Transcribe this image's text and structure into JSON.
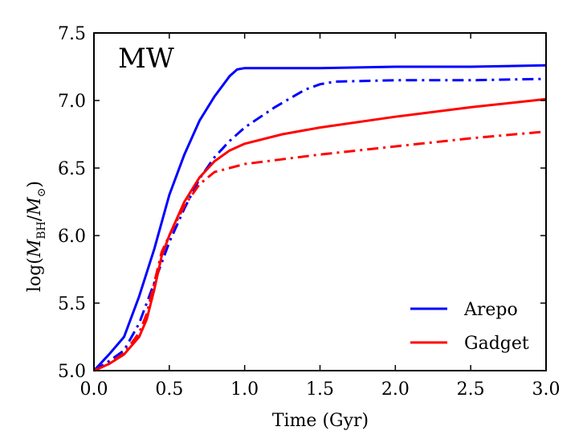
{
  "chart_data": {
    "type": "line",
    "panel_label": "MW",
    "xlabel": "Time (Gyr)",
    "ylabel": "log(M_BH/M_⊙)",
    "xlim": [
      0.0,
      3.0
    ],
    "ylim": [
      5.0,
      7.5
    ],
    "x_ticks": [
      0.0,
      0.5,
      1.0,
      1.5,
      2.0,
      2.5,
      3.0
    ],
    "x_tick_labels": [
      "0.0",
      "0.5",
      "1.0",
      "1.5",
      "2.0",
      "2.5",
      "3.0"
    ],
    "y_ticks": [
      5.0,
      5.5,
      6.0,
      6.5,
      7.0,
      7.5
    ],
    "y_tick_labels": [
      "5.0",
      "5.5",
      "6.0",
      "6.5",
      "7.0",
      "7.5"
    ],
    "grid": false,
    "legend": {
      "position": "lower-right",
      "entries": [
        {
          "label": "Arepo",
          "color": "#0000ff"
        },
        {
          "label": "Gadget",
          "color": "#ff0000"
        }
      ]
    },
    "series": [
      {
        "color": "#0000ff",
        "style": "solid",
        "x": [
          0.0,
          0.05,
          0.1,
          0.2,
          0.3,
          0.4,
          0.5,
          0.6,
          0.7,
          0.8,
          0.9,
          0.95,
          1.0,
          1.5,
          2.0,
          2.5,
          3.0
        ],
        "y": [
          5.0,
          5.06,
          5.12,
          5.25,
          5.55,
          5.9,
          6.3,
          6.6,
          6.85,
          7.03,
          7.18,
          7.23,
          7.24,
          7.24,
          7.25,
          7.25,
          7.26
        ]
      },
      {
        "color": "#0000ff",
        "style": "dashdot",
        "x": [
          0.0,
          0.1,
          0.2,
          0.3,
          0.4,
          0.5,
          0.6,
          0.7,
          0.8,
          0.9,
          1.0,
          1.2,
          1.4,
          1.5,
          1.6,
          2.0,
          2.5,
          3.0
        ],
        "y": [
          5.0,
          5.07,
          5.15,
          5.35,
          5.65,
          5.95,
          6.2,
          6.42,
          6.58,
          6.7,
          6.8,
          6.95,
          7.08,
          7.12,
          7.14,
          7.15,
          7.15,
          7.16
        ]
      },
      {
        "color": "#ff0000",
        "style": "solid",
        "x": [
          0.0,
          0.1,
          0.2,
          0.3,
          0.35,
          0.4,
          0.45,
          0.5,
          0.6,
          0.7,
          0.8,
          0.9,
          1.0,
          1.25,
          1.5,
          2.0,
          2.5,
          3.0
        ],
        "y": [
          5.0,
          5.05,
          5.12,
          5.25,
          5.38,
          5.6,
          5.85,
          6.0,
          6.25,
          6.43,
          6.55,
          6.63,
          6.68,
          6.75,
          6.8,
          6.88,
          6.95,
          7.01
        ]
      },
      {
        "color": "#ff0000",
        "style": "dashdot",
        "x": [
          0.0,
          0.1,
          0.2,
          0.3,
          0.35,
          0.4,
          0.45,
          0.5,
          0.6,
          0.7,
          0.8,
          0.9,
          1.0,
          1.5,
          2.0,
          2.5,
          3.0
        ],
        "y": [
          5.0,
          5.05,
          5.13,
          5.28,
          5.42,
          5.65,
          5.88,
          6.0,
          6.22,
          6.38,
          6.47,
          6.5,
          6.53,
          6.6,
          6.66,
          6.72,
          6.77
        ]
      }
    ]
  }
}
